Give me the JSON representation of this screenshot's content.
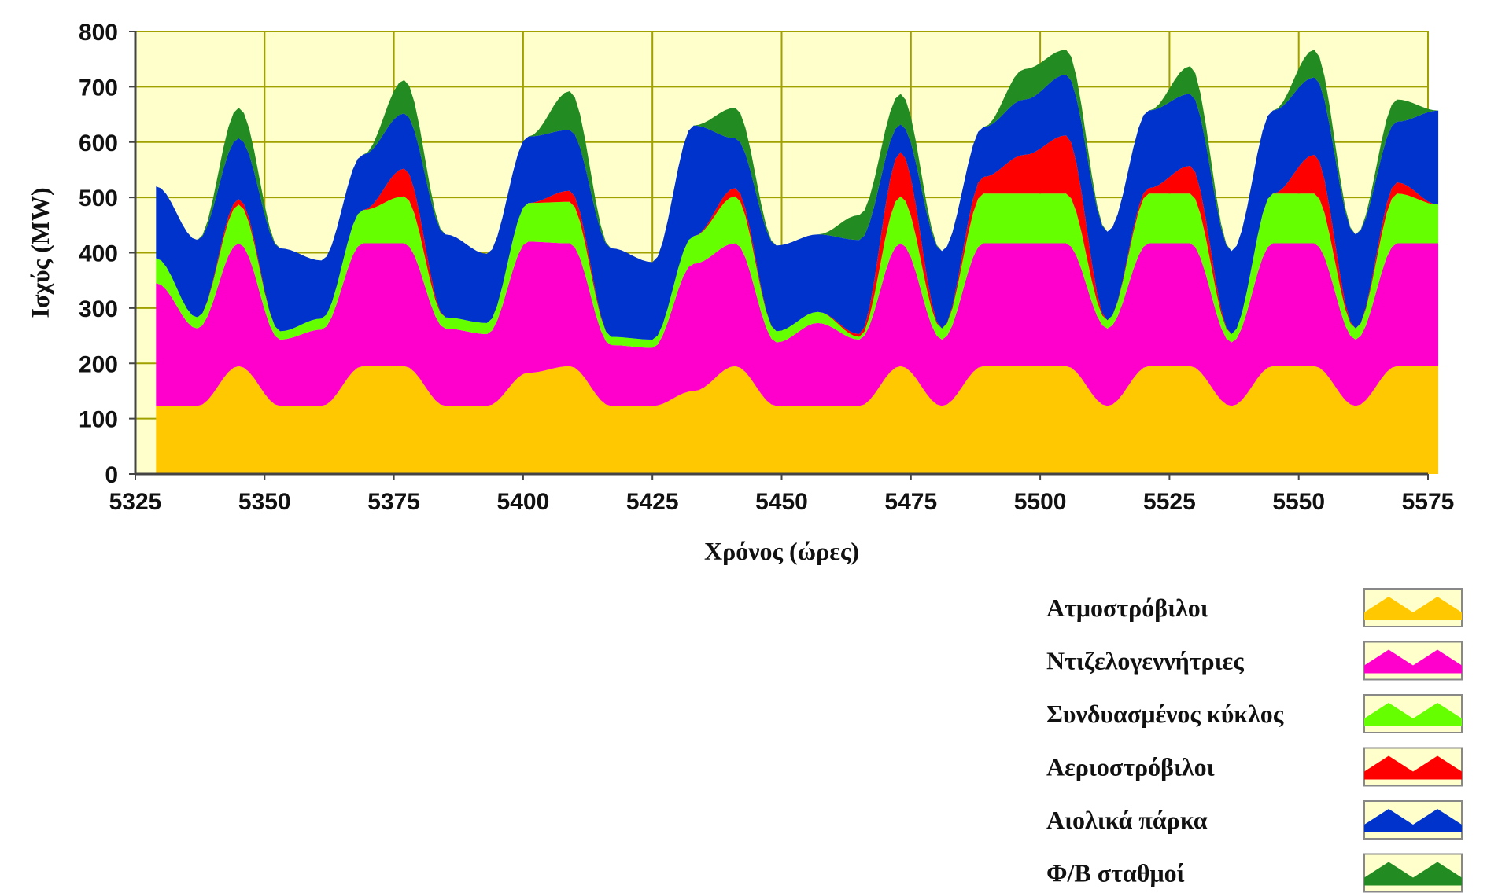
{
  "chart_data": {
    "type": "area",
    "stacked": true,
    "xlabel": "Χρόνος (ώρες)",
    "ylabel": "Ισχύς (MW)",
    "xlim": [
      5325,
      5575
    ],
    "ylim": [
      0,
      800
    ],
    "xticks": [
      5325,
      5350,
      5375,
      5400,
      5425,
      5450,
      5475,
      5500,
      5525,
      5550,
      5575
    ],
    "yticks": [
      0,
      100,
      200,
      300,
      400,
      500,
      600,
      700,
      800
    ],
    "grid": true,
    "background_color": "#ffffcc",
    "grid_color": "#a0a000",
    "legend_position": "bottom-right",
    "x_start": 5329,
    "x_step": 8,
    "series": [
      {
        "name": "Ατμοστρόβιλοι",
        "color": "#ffc800",
        "values": [
          123,
          123,
          195,
          123,
          123,
          195,
          195,
          123,
          123,
          183,
          195,
          123,
          123,
          150,
          195,
          123,
          123,
          123,
          195,
          123,
          195,
          195,
          195,
          123,
          195,
          195,
          123,
          195,
          195,
          123,
          195,
          195
        ]
      },
      {
        "name": "Ντιζελογεννήτριες",
        "color": "#ff00cc",
        "values": [
          222,
          140,
          222,
          120,
          138,
          222,
          222,
          140,
          130,
          237,
          222,
          110,
          105,
          230,
          222,
          115,
          150,
          120,
          222,
          120,
          222,
          222,
          222,
          140,
          222,
          222,
          115,
          222,
          222,
          120,
          222,
          222
        ]
      },
      {
        "name": "Συνδυασμένος κύκλος",
        "color": "#66ff00",
        "values": [
          45,
          20,
          70,
          15,
          20,
          60,
          85,
          20,
          20,
          70,
          75,
          15,
          15,
          50,
          85,
          20,
          20,
          5,
          85,
          20,
          90,
          90,
          90,
          15,
          90,
          90,
          15,
          90,
          90,
          20,
          90,
          70
        ]
      },
      {
        "name": "Αεριοστρόβιλοι",
        "color": "#ff0000",
        "values": [
          0,
          0,
          10,
          0,
          0,
          0,
          50,
          0,
          0,
          0,
          20,
          0,
          0,
          0,
          15,
          0,
          0,
          5,
          80,
          0,
          30,
          70,
          105,
          0,
          10,
          50,
          0,
          0,
          70,
          0,
          20,
          0
        ]
      },
      {
        "name": "Αιολικά πάρκα",
        "color": "#0033cc",
        "values": [
          130,
          140,
          110,
          150,
          105,
          100,
          100,
          150,
          125,
          120,
          110,
          160,
          140,
          200,
          90,
          155,
          140,
          170,
          50,
          140,
          90,
          100,
          110,
          160,
          140,
          130,
          150,
          150,
          140,
          170,
          110,
          170
        ]
      },
      {
        "name": "Φ/Β σταθμοί",
        "color": "#228b22",
        "values": [
          0,
          0,
          55,
          0,
          0,
          0,
          60,
          0,
          0,
          0,
          70,
          0,
          0,
          0,
          55,
          0,
          0,
          45,
          55,
          0,
          0,
          55,
          45,
          0,
          0,
          50,
          0,
          0,
          50,
          0,
          40,
          0
        ]
      }
    ]
  }
}
